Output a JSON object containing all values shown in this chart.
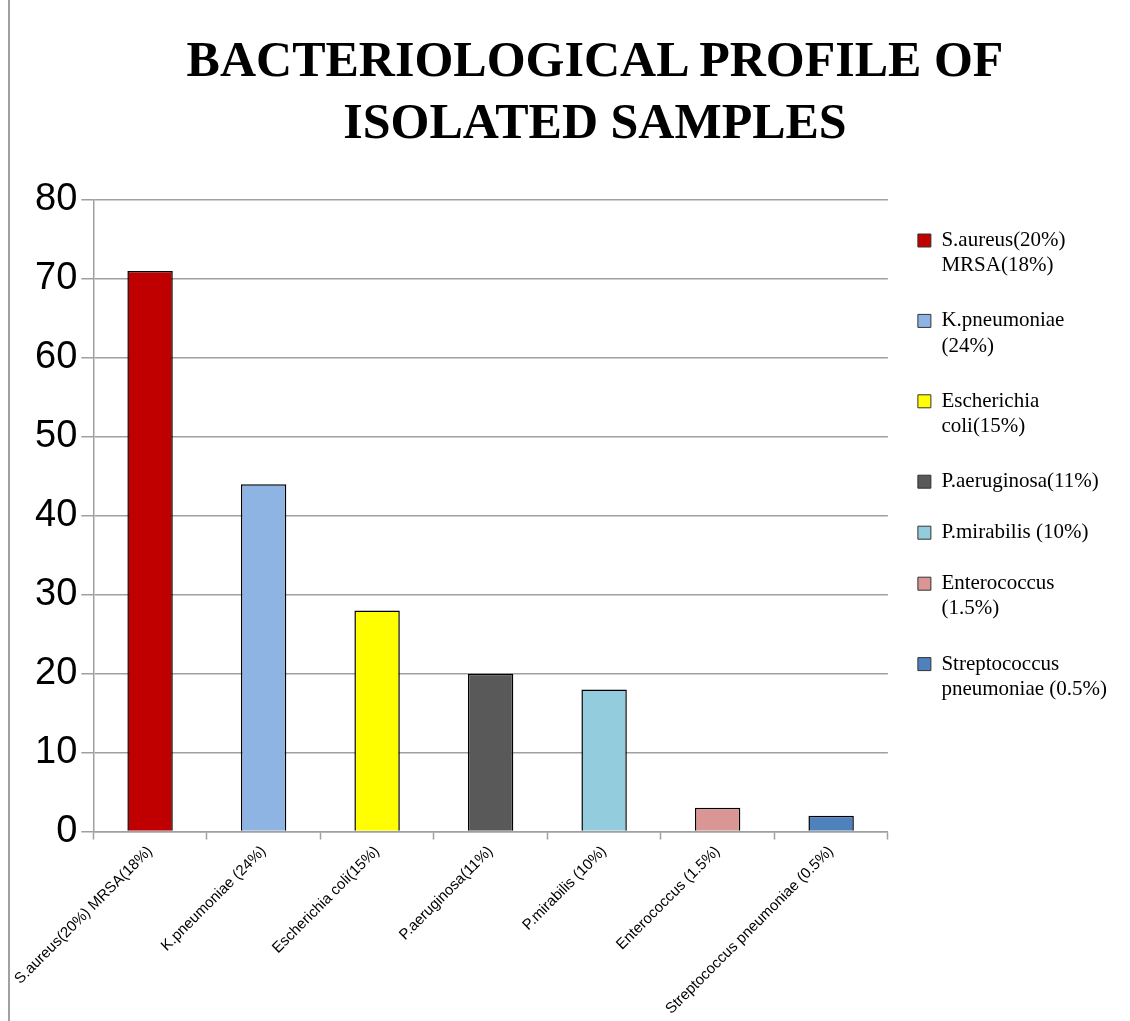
{
  "chart_data": {
    "type": "bar",
    "title": "BACTERIOLOGICAL PROFILE OF ISOLATED SAMPLES",
    "categories": [
      "S.aureus(20%) MRSA(18%)",
      "K.pneumoniae (24%)",
      "Escherichia coli(15%)",
      "P.aeruginosa(11%)",
      "P.mirabilis (10%)",
      "Enterococcus (1.5%)",
      "Streptococcus pneumoniae (0.5%)"
    ],
    "series": [
      {
        "name": "S.aureus(20%) MRSA(18%)",
        "color": "#c00000",
        "values": [
          71,
          null,
          null,
          null,
          null,
          null,
          null
        ]
      },
      {
        "name": "K.pneumoniae (24%)",
        "color": "#8eb4e3",
        "values": [
          null,
          44,
          null,
          null,
          null,
          null,
          null
        ]
      },
      {
        "name": "Escherichia coli(15%)",
        "color": "#ffff00",
        "values": [
          null,
          null,
          28,
          null,
          null,
          null,
          null
        ]
      },
      {
        "name": "P.aeruginosa(11%)",
        "color": "#595959",
        "values": [
          null,
          null,
          null,
          20,
          null,
          null,
          null
        ]
      },
      {
        "name": "P.mirabilis (10%)",
        "color": "#93cddd",
        "values": [
          null,
          null,
          null,
          null,
          18,
          null,
          null
        ]
      },
      {
        "name": "Enterococcus (1.5%)",
        "color": "#d99694",
        "values": [
          null,
          null,
          null,
          null,
          null,
          3,
          null
        ]
      },
      {
        "name": "Streptococcus pneumoniae (0.5%)",
        "color": "#4f81bd",
        "values": [
          null,
          null,
          null,
          null,
          null,
          null,
          2
        ]
      }
    ],
    "ylim": [
      0,
      80
    ],
    "yticks": [
      0,
      10,
      20,
      30,
      40,
      50,
      60,
      70,
      80
    ],
    "grid": "y",
    "legend": "right"
  }
}
